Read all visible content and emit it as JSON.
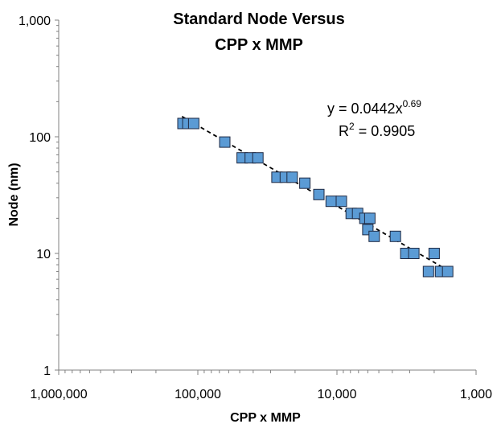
{
  "chart_data": {
    "type": "scatter",
    "title_lines": [
      "Standard Node Versus",
      "CPP x MMP"
    ],
    "xlabel": "CPP x MMP",
    "ylabel": "Node (nm)",
    "x_scale": "log",
    "x_reversed": true,
    "y_scale": "log",
    "xlim": [
      1000000,
      1000
    ],
    "ylim": [
      1,
      1000
    ],
    "x_ticks": [
      1000000,
      100000,
      10000,
      1000
    ],
    "x_tick_labels": [
      "1,000,000",
      "100,000",
      "10,000",
      "1,000"
    ],
    "y_ticks": [
      1,
      10,
      100,
      1000
    ],
    "y_tick_labels": [
      "1",
      "10",
      "100",
      "1,000"
    ],
    "grid": false,
    "legend": "none",
    "marker_color": "#5b9bd5",
    "marker_edge_color": "#1f2a44",
    "trendline": {
      "type": "power",
      "coefficient": 0.0442,
      "exponent": 0.69,
      "r_squared": 0.9905,
      "style": "dashed",
      "color": "#000000",
      "x_range": [
        130000,
        1700
      ],
      "equation_prefix": "y = 0.0442x",
      "equation_exponent": "0.69",
      "r2_prefix": "R",
      "r2_exponent": "2",
      "r2_suffix": " = 0.9905"
    },
    "points": [
      {
        "x": 128000,
        "y": 130
      },
      {
        "x": 118000,
        "y": 130
      },
      {
        "x": 107000,
        "y": 130
      },
      {
        "x": 64000,
        "y": 90
      },
      {
        "x": 48000,
        "y": 66
      },
      {
        "x": 42000,
        "y": 66
      },
      {
        "x": 37000,
        "y": 66
      },
      {
        "x": 27000,
        "y": 45
      },
      {
        "x": 23500,
        "y": 45
      },
      {
        "x": 21000,
        "y": 45
      },
      {
        "x": 17000,
        "y": 40
      },
      {
        "x": 13500,
        "y": 32
      },
      {
        "x": 11000,
        "y": 28
      },
      {
        "x": 9300,
        "y": 28
      },
      {
        "x": 7900,
        "y": 22
      },
      {
        "x": 7100,
        "y": 22
      },
      {
        "x": 6300,
        "y": 20
      },
      {
        "x": 5800,
        "y": 20
      },
      {
        "x": 6000,
        "y": 16
      },
      {
        "x": 5400,
        "y": 14
      },
      {
        "x": 3800,
        "y": 14
      },
      {
        "x": 3200,
        "y": 10
      },
      {
        "x": 2800,
        "y": 10
      },
      {
        "x": 2000,
        "y": 10
      },
      {
        "x": 2200,
        "y": 7
      },
      {
        "x": 1800,
        "y": 7
      },
      {
        "x": 1600,
        "y": 7
      }
    ]
  }
}
